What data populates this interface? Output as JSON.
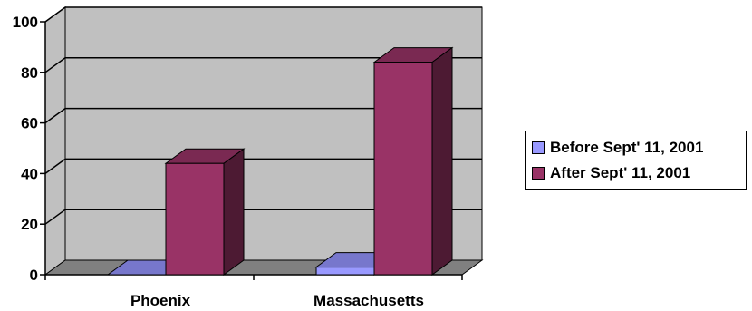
{
  "chart_data": {
    "type": "bar",
    "style": "3d-clustered-column",
    "categories": [
      "Phoenix",
      "Massachusetts"
    ],
    "series": [
      {
        "name": "Before Sept' 11, 2001",
        "values": [
          0,
          3
        ]
      },
      {
        "name": "After Sept' 11, 2001",
        "values": [
          44,
          84
        ]
      }
    ],
    "yticks": [
      0,
      20,
      40,
      60,
      80,
      100
    ],
    "ylim": [
      0,
      100
    ],
    "grid": true,
    "legend_position": "right",
    "title": "",
    "xlabel": "",
    "ylabel": ""
  },
  "colors": {
    "wall": "#c0c0c0",
    "floor": "#808080",
    "series": [
      {
        "front": "#9999ff",
        "top": "#7777cc",
        "side": "#5c5c9e"
      },
      {
        "front": "#993366",
        "top": "#7a2952",
        "side": "#4d1a33"
      }
    ]
  }
}
